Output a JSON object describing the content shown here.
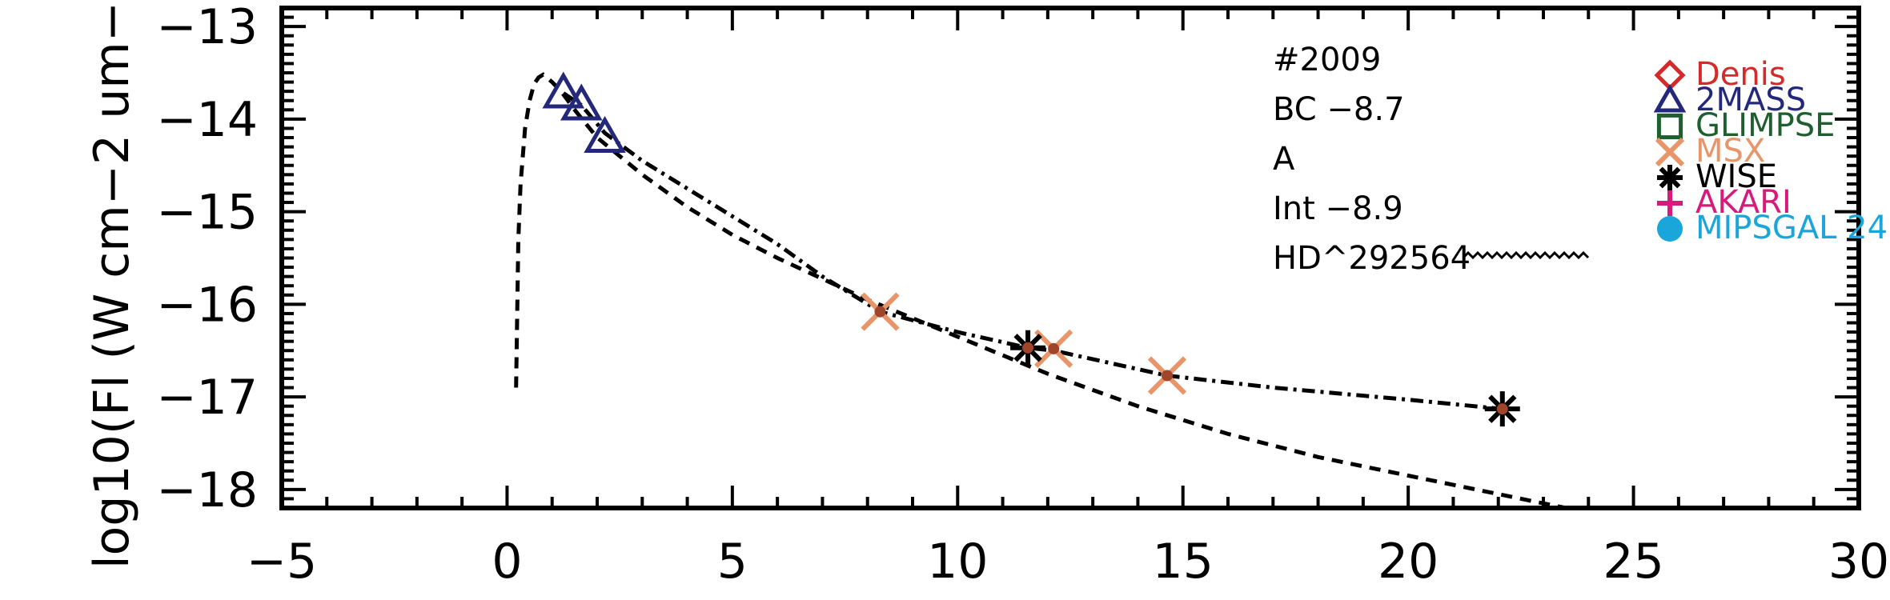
{
  "chart_data": {
    "type": "scatter",
    "ylabel": "log10(Fl (W cm−2 um−",
    "xlim": [
      -5,
      30
    ],
    "ylim": [
      -18.2,
      -12.8
    ],
    "x_ticks": [
      -5,
      0,
      5,
      10,
      15,
      20,
      25,
      30
    ],
    "x_tick_labels": [
      "−5",
      "0",
      "5",
      "10",
      "15",
      "20",
      "25",
      "30"
    ],
    "y_ticks": [
      -18,
      -17,
      -16,
      -15,
      -14,
      -13
    ],
    "y_tick_labels": [
      "−18",
      "−17",
      "−16",
      "−15",
      "−14",
      "−13"
    ],
    "annotations": [
      "#2009",
      "BC  −8.7",
      "A",
      "Int  −8.9",
      "HD^292564"
    ],
    "legend": [
      {
        "label": "Denis",
        "marker": "diamond",
        "color": "#d42a2a"
      },
      {
        "label": "2MASS",
        "marker": "triangle",
        "color": "#24287a"
      },
      {
        "label": "GLIMPSE",
        "marker": "square",
        "color": "#1f5e2e"
      },
      {
        "label": "MSX",
        "marker": "x",
        "color": "#e8956a"
      },
      {
        "label": "WISE",
        "marker": "asterisk",
        "color": "#000000"
      },
      {
        "label": "AKARI",
        "marker": "plus",
        "color": "#d81b7a"
      },
      {
        "label": "MIPSGAL 24",
        "marker": "circle",
        "color": "#1aa5db"
      }
    ],
    "series": [
      {
        "name": "2MASS",
        "marker": "triangle",
        "color": "#24287a",
        "x": [
          1.25,
          1.65,
          2.17
        ],
        "y": [
          -13.72,
          -13.85,
          -14.2
        ]
      },
      {
        "name": "MSX",
        "marker": "x",
        "color": "#e8956a",
        "x": [
          8.28,
          12.13,
          14.65
        ],
        "y": [
          -16.08,
          -16.48,
          -16.77
        ]
      },
      {
        "name": "WISE",
        "marker": "asterisk",
        "color": "#000000",
        "x": [
          11.56,
          22.09
        ],
        "y": [
          -16.47,
          -17.13
        ]
      }
    ],
    "curves": [
      {
        "style": "dashed",
        "x": [
          0.2,
          0.25,
          0.3,
          0.4,
          0.5,
          0.6,
          0.7,
          0.8,
          1.0,
          1.2,
          1.5,
          2.0,
          3.0,
          4.0,
          5.0,
          6.0,
          8.0,
          10.0,
          12.0,
          14.0,
          16.0,
          18.0,
          20.0,
          22.0,
          23.5
        ],
        "y": [
          -16.9,
          -15.3,
          -14.7,
          -14.1,
          -13.8,
          -13.62,
          -13.55,
          -13.52,
          -13.6,
          -13.7,
          -13.9,
          -14.2,
          -14.6,
          -14.95,
          -15.25,
          -15.5,
          -15.95,
          -16.35,
          -16.75,
          -17.1,
          -17.4,
          -17.65,
          -17.85,
          -18.05,
          -18.2
        ]
      },
      {
        "style": "dash-dot",
        "x": [
          1.25,
          1.65,
          2.17,
          3.0,
          4.0,
          5.0,
          6.0,
          7.0,
          8.28,
          10.0,
          11.56,
          12.13,
          14.65,
          17.0,
          20.0,
          22.09
        ],
        "y": [
          -13.72,
          -13.85,
          -14.15,
          -14.45,
          -14.75,
          -15.05,
          -15.35,
          -15.7,
          -16.08,
          -16.3,
          -16.47,
          -16.5,
          -16.77,
          -16.9,
          -17.03,
          -17.13
        ]
      }
    ]
  }
}
